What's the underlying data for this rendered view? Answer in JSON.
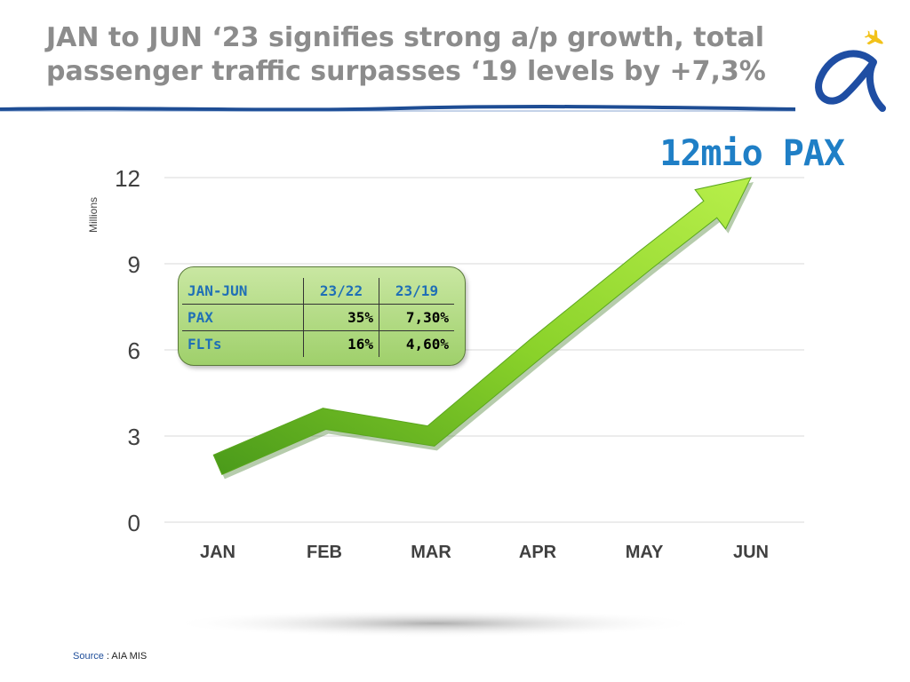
{
  "title": {
    "line1": "JAN to JUN ‘23 signifies strong a/p growth, total",
    "line2": "passenger traffic surpasses ‘19 levels  by +7,3%"
  },
  "headline": "12mio PAX",
  "source": {
    "label": "Source",
    "sep": " : ",
    "value": "AIA MIS"
  },
  "stats_table": {
    "header": [
      "JAN-JUN",
      "23/22",
      "23/19"
    ],
    "rows": [
      [
        "PAX",
        "35%",
        "7,30%"
      ],
      [
        "FLTs",
        "16%",
        "4,60%"
      ]
    ]
  },
  "colors": {
    "title": "#8c8c8c",
    "headline": "#1f7fc6",
    "arrow_light": "#a6e33a",
    "arrow_dark": "#4a9a1a",
    "grid": "#d9d9d9",
    "table_label": "#1f6fb6",
    "logo_blue": "#1f4ea3",
    "logo_yellow": "#f2c21a"
  },
  "chart_data": {
    "type": "line",
    "title": "",
    "xlabel": "",
    "ylabel": "Millions",
    "categories": [
      "JAN",
      "FEB",
      "MAR",
      "APR",
      "MAY",
      "JUN"
    ],
    "series": [
      {
        "values": [
          2.0,
          3.6,
          3.0,
          6.1,
          9.1,
          12.0
        ]
      }
    ],
    "ylim": [
      0,
      12
    ],
    "yticks": [
      "0",
      "3",
      "6",
      "9",
      "12"
    ],
    "grid": true
  }
}
